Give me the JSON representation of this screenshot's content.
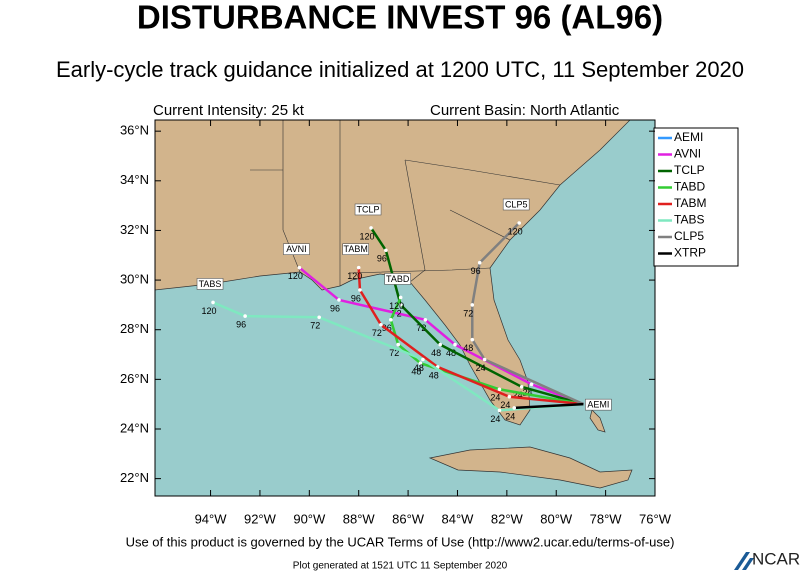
{
  "chart_data": {
    "type": "track-map",
    "title": "DISTURBANCE INVEST 96 (AL96)",
    "subtitle": "Early-cycle track guidance initialized at 1200 UTC, 11 September 2020",
    "intensity": "Current Intensity: 25 kt",
    "basin": "Current Basin: North Atlantic",
    "xlim": [
      -96.25,
      -76
    ],
    "ylim": [
      21.3,
      36.45
    ],
    "xticks": [
      {
        "value": -94,
        "label": "94°W"
      },
      {
        "value": -92,
        "label": "92°W"
      },
      {
        "value": -90,
        "label": "90°W"
      },
      {
        "value": -88,
        "label": "88°W"
      },
      {
        "value": -86,
        "label": "86°W"
      },
      {
        "value": -84,
        "label": "84°W"
      },
      {
        "value": -82,
        "label": "82°W"
      },
      {
        "value": -80,
        "label": "80°W"
      },
      {
        "value": -78,
        "label": "78°W"
      },
      {
        "value": -76,
        "label": "76°W"
      }
    ],
    "yticks": [
      {
        "value": 22,
        "label": "22°N"
      },
      {
        "value": 24,
        "label": "24°N"
      },
      {
        "value": 26,
        "label": "26°N"
      },
      {
        "value": 28,
        "label": "28°N"
      },
      {
        "value": 30,
        "label": "30°N"
      },
      {
        "value": 32,
        "label": "32°N"
      },
      {
        "value": 34,
        "label": "34°N"
      },
      {
        "value": 36,
        "label": "36°N"
      }
    ],
    "series": [
      {
        "name": "AEMI",
        "color": "#3399ff",
        "box": "start",
        "lon": [
          -78.9,
          -79.3
        ],
        "lat": [
          25.0,
          25.05
        ],
        "hours": [
          null,
          null
        ]
      },
      {
        "name": "AVNI",
        "color": "#e020e0",
        "box": "end",
        "lon": [
          -78.9,
          -81.0,
          -84.1,
          -85.3,
          -88.8,
          -90.4
        ],
        "lat": [
          25.0,
          25.8,
          27.4,
          28.4,
          29.2,
          30.5
        ],
        "hours": [
          null,
          24,
          48,
          72,
          96,
          120
        ]
      },
      {
        "name": "TCLP",
        "color": "#006400",
        "box": "end",
        "lon": [
          -78.9,
          -81.4,
          -84.7,
          -86.3,
          -86.9,
          -87.5
        ],
        "lat": [
          25.0,
          25.7,
          27.4,
          29.0,
          31.2,
          32.1
        ],
        "hours": [
          null,
          24,
          48,
          72,
          96,
          120
        ]
      },
      {
        "name": "TABD",
        "color": "#33cc33",
        "box": "end",
        "lon": [
          -78.9,
          -82.3,
          -85.5,
          -86.4,
          -86.7,
          -86.3
        ],
        "lat": [
          25.0,
          25.6,
          26.65,
          27.4,
          28.4,
          29.3
        ],
        "hours": [
          null,
          24,
          48,
          72,
          96,
          120
        ]
      },
      {
        "name": "TABM",
        "color": "#e0201f",
        "box": "end",
        "lon": [
          -78.9,
          -81.9,
          -84.8,
          -87.1,
          -87.95,
          -88.0
        ],
        "lat": [
          25.0,
          25.3,
          26.5,
          28.2,
          29.6,
          30.5
        ],
        "hours": [
          null,
          24,
          48,
          72,
          96,
          120
        ]
      },
      {
        "name": "TABS",
        "color": "#7fe8c0",
        "box": "end",
        "lon": [
          -78.9,
          -82.3,
          -85.4,
          -89.6,
          -92.6,
          -93.9
        ],
        "lat": [
          25.0,
          24.75,
          26.8,
          28.5,
          28.55,
          29.1
        ],
        "hours": [
          null,
          24,
          48,
          72,
          96,
          120
        ]
      },
      {
        "name": "CLP5",
        "color": "#808080",
        "box": "end",
        "lon": [
          -78.9,
          -82.9,
          -83.4,
          -83.4,
          -83.1,
          -81.5
        ],
        "lat": [
          25.0,
          26.8,
          27.6,
          29.0,
          30.7,
          32.3
        ],
        "hours": [
          null,
          24,
          48,
          72,
          96,
          120
        ]
      },
      {
        "name": "XTRP",
        "color": "#000000",
        "box": null,
        "lon": [
          -78.9,
          -81.7
        ],
        "lat": [
          25.0,
          24.85
        ],
        "hours": [
          null,
          24
        ]
      }
    ],
    "footer": "Use of this product is governed by the UCAR Terms of Use (http://www2.ucar.edu/terms-of-use)",
    "generated": "Plot generated at 1521 UTC   11 September 2020",
    "logo": "NCAR"
  }
}
